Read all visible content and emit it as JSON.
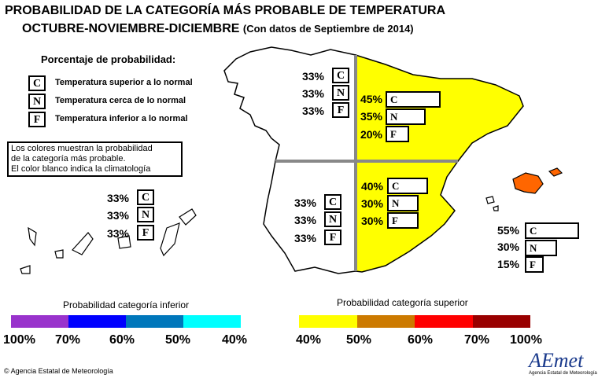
{
  "title": {
    "line1": "PROBABILIDAD DE LA CATEGORÍA MÁS PROBABLE DE TEMPERATURA",
    "line2": "OCTUBRE-NOVIEMBRE-DICIEMBRE",
    "data_note": "(Con datos de Septiembre de 2014)"
  },
  "legend": {
    "heading": "Porcentaje de probabilidad:",
    "items": [
      {
        "code": "C",
        "label": "Temperatura superior a lo normal"
      },
      {
        "code": "N",
        "label": "Temperatura cerca de lo normal"
      },
      {
        "code": "F",
        "label": "Temperatura inferior a lo normal"
      }
    ],
    "note_lines": [
      "Los colores muestran la probabilidad",
      "de la categoría más probable.",
      "El color blanco indica la climatología"
    ]
  },
  "regions": [
    {
      "name": "northwest",
      "fill": "#ffffff",
      "probs": [
        {
          "code": "C",
          "pct": 33
        },
        {
          "code": "N",
          "pct": 33
        },
        {
          "code": "F",
          "pct": 33
        }
      ]
    },
    {
      "name": "northeast",
      "fill": "#ffff00",
      "probs": [
        {
          "code": "C",
          "pct": 45
        },
        {
          "code": "N",
          "pct": 35
        },
        {
          "code": "F",
          "pct": 20
        }
      ]
    },
    {
      "name": "southwest",
      "fill": "#ffffff",
      "probs": [
        {
          "code": "C",
          "pct": 33
        },
        {
          "code": "N",
          "pct": 33
        },
        {
          "code": "F",
          "pct": 33
        }
      ]
    },
    {
      "name": "southeast",
      "fill": "#ffff00",
      "probs": [
        {
          "code": "C",
          "pct": 40
        },
        {
          "code": "N",
          "pct": 30
        },
        {
          "code": "F",
          "pct": 30
        }
      ]
    },
    {
      "name": "canarias",
      "fill": "#ffffff",
      "probs": [
        {
          "code": "C",
          "pct": 33
        },
        {
          "code": "N",
          "pct": 33
        },
        {
          "code": "F",
          "pct": 33
        }
      ]
    },
    {
      "name": "baleares",
      "fill": "#ff6600",
      "probs": [
        {
          "code": "C",
          "pct": 55
        },
        {
          "code": "N",
          "pct": 30
        },
        {
          "code": "F",
          "pct": 15
        }
      ]
    }
  ],
  "scale_inferior": {
    "title": "Probabilidad categoría inferior",
    "colors": [
      "#9933cc",
      "#0000ff",
      "#0077bb",
      "#00ffff"
    ],
    "ticks": [
      "100%",
      "70%",
      "60%",
      "50%",
      "40%"
    ]
  },
  "scale_superior": {
    "title": "Probabilidad categoría superior",
    "colors": [
      "#ffff00",
      "#cc7a00",
      "#ff0000",
      "#990000"
    ],
    "ticks": [
      "40%",
      "50%",
      "60%",
      "70%",
      "100%"
    ]
  },
  "footer": {
    "copyright": "© Agencia Estatal de Meteorología",
    "logo_text": "AEmet",
    "logo_caption": "Agencia Estatal de Meteorología"
  }
}
